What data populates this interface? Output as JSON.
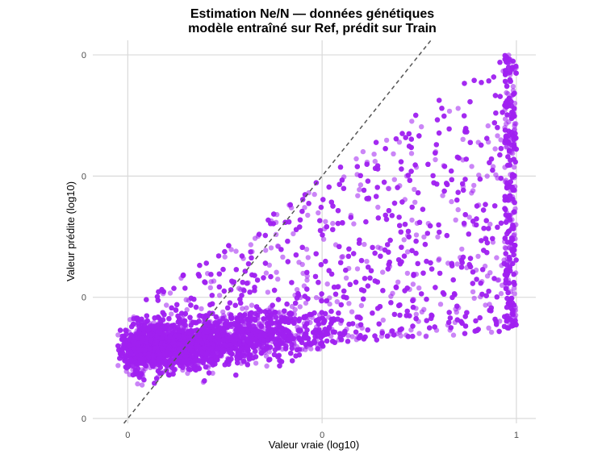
{
  "chart_data": {
    "type": "scatter",
    "title": "Estimation Ne/N — données génétiques",
    "subtitle": "modèle entraîné sur Ref, prédit sur Train",
    "xlabel": "Valeur vraie (log10)",
    "ylabel": "Valeur prédite (log10)",
    "x_ticks": [
      0.0,
      0.5,
      1.0
    ],
    "x_tick_labels": [
      "0",
      "0",
      "1"
    ],
    "y_ticks": [
      0.0,
      0.25,
      0.5,
      0.75
    ],
    "y_tick_labels": [
      "0",
      "0",
      "0",
      "0"
    ],
    "xlim": [
      -0.09,
      1.05
    ],
    "ylim": [
      -0.01,
      0.78
    ],
    "grid": true,
    "legend": "none",
    "reference_line": {
      "type": "identity",
      "style": "dashed",
      "color": "#555555"
    },
    "point_color": "#a020f0",
    "point_alpha": 0.55,
    "point_count_estimate": 9000,
    "point_distribution": {
      "description": "Dense cluster at low true values; predictions fan out upward as true value increases",
      "dense_core": {
        "x_range": [
          -0.05,
          0.6
        ],
        "y_range": [
          0.05,
          0.23
        ]
      },
      "upper_fan": {
        "x_range": [
          0.3,
          1.0
        ],
        "y_range": [
          0.2,
          0.76
        ]
      },
      "right_column": {
        "x": 1.0,
        "y_range": [
          0.19,
          0.75
        ]
      }
    },
    "series": [
      {
        "x": [
          -0.04,
          0.0,
          0.05,
          0.1,
          0.15,
          0.2,
          0.25,
          0.3,
          0.35,
          0.4,
          0.45,
          0.5,
          0.55,
          0.6,
          0.65,
          0.7,
          0.75,
          0.8,
          0.85,
          0.9,
          0.95,
          1.0
        ],
        "y": [
          0.15,
          0.15,
          0.16,
          0.17,
          0.17,
          0.18,
          0.18,
          0.19,
          0.2,
          0.21,
          0.22,
          0.24,
          0.28,
          0.32,
          0.35,
          0.38,
          0.4,
          0.42,
          0.44,
          0.46,
          0.48,
          0.5
        ]
      }
    ]
  }
}
